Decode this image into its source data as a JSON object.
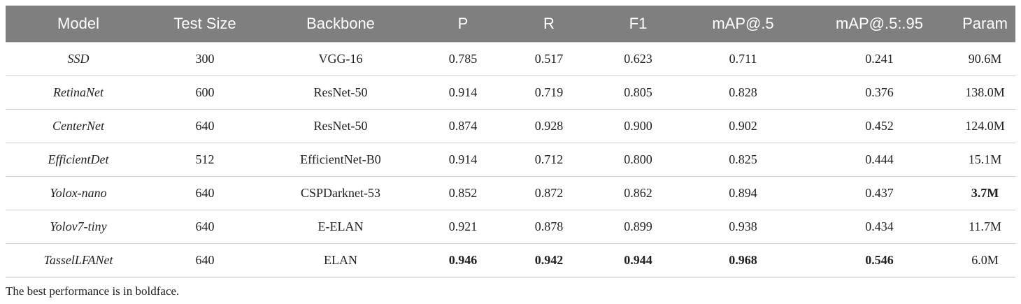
{
  "table": {
    "header": [
      "Model",
      "Test Size",
      "Backbone",
      "P",
      "R",
      "F1",
      "mAP@.5",
      "mAP@.5:.95",
      "Param"
    ],
    "rows": [
      [
        "SSD",
        "300",
        "VGG-16",
        "0.785",
        "0.517",
        "0.623",
        "0.711",
        "0.241",
        "90.6M"
      ],
      [
        "RetinaNet",
        "600",
        "ResNet-50",
        "0.914",
        "0.719",
        "0.805",
        "0.828",
        "0.376",
        "138.0M"
      ],
      [
        "CenterNet",
        "640",
        "ResNet-50",
        "0.874",
        "0.928",
        "0.900",
        "0.902",
        "0.452",
        "124.0M"
      ],
      [
        "EfficientDet",
        "512",
        "EfficientNet-B0",
        "0.914",
        "0.712",
        "0.800",
        "0.825",
        "0.444",
        "15.1M"
      ],
      [
        "Yolox-nano",
        "640",
        "CSPDarknet-53",
        "0.852",
        "0.872",
        "0.862",
        "0.894",
        "0.437",
        "3.7M"
      ],
      [
        "Yolov7-tiny",
        "640",
        "E-ELAN",
        "0.921",
        "0.878",
        "0.899",
        "0.938",
        "0.434",
        "11.7M"
      ],
      [
        "TasselLFANet",
        "640",
        "ELAN",
        "0.946",
        "0.942",
        "0.944",
        "0.968",
        "0.546",
        "6.0M"
      ]
    ],
    "bold_cells": [
      [
        4,
        8
      ],
      [
        6,
        3
      ],
      [
        6,
        4
      ],
      [
        6,
        5
      ],
      [
        6,
        6
      ],
      [
        6,
        7
      ]
    ],
    "italic_column": 0
  },
  "footnote": "The best performance is in boldface."
}
